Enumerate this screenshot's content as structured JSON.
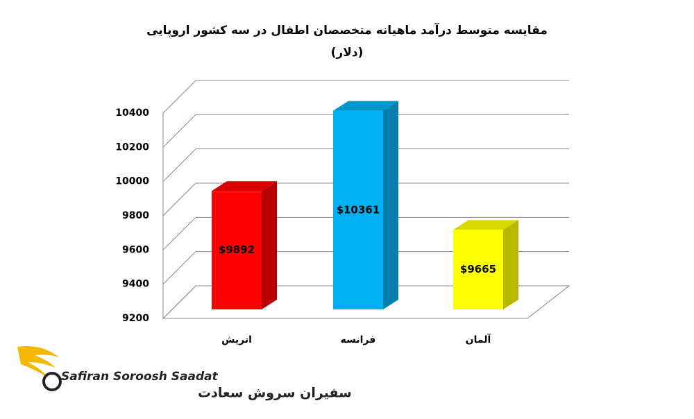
{
  "chart_data": {
    "type": "bar3d",
    "title": "مقایسه متوسط درآمد ماهیانه متخصصان اطفال در سه کشور اروپایی",
    "subtitle": "(دلار)",
    "categories": [
      "اتریش",
      "فرانسه",
      "آلمان"
    ],
    "values": [
      9892,
      10361,
      9665
    ],
    "value_labels": [
      "$9892",
      "$10361",
      "$9665"
    ],
    "colors": [
      "#ff0000",
      "#00b0f0",
      "#ffff00"
    ],
    "ylim": [
      9200,
      10400
    ],
    "yticks": [
      9200,
      9400,
      9600,
      9800,
      10000,
      10200,
      10400
    ],
    "grid": true
  },
  "logo": {
    "name": "Safiran Soroosh Saadat",
    "name_fa": "سفیران سروش سعادت"
  }
}
